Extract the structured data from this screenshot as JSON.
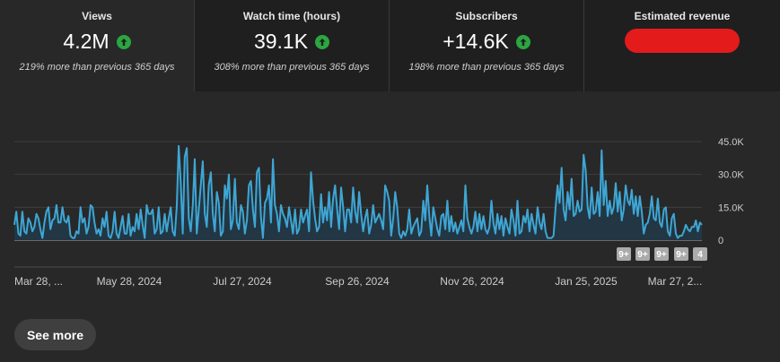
{
  "metrics": [
    {
      "label": "Views",
      "value": "4.2M",
      "compare": "219% more than previous 365 days",
      "trend_icon": "arrow-up-icon"
    },
    {
      "label": "Watch time (hours)",
      "value": "39.1K",
      "compare": "308% more than previous 365 days",
      "trend_icon": "arrow-up-icon"
    },
    {
      "label": "Subscribers",
      "value": "+14.6K",
      "compare": "198% more than previous 365 days",
      "trend_icon": "arrow-up-icon"
    },
    {
      "label": "Estimated revenue",
      "value_redacted": true
    }
  ],
  "colors": {
    "line": "#3ea6d4",
    "fill": "#223644",
    "trend_up": "#2ba640",
    "redaction": "#e31b1b"
  },
  "chart_data": {
    "type": "area",
    "ylim": [
      0,
      45000
    ],
    "y_ticks": [
      {
        "value": 45000,
        "label": "45.0K"
      },
      {
        "value": 30000,
        "label": "30.0K"
      },
      {
        "value": 15000,
        "label": "15.0K"
      },
      {
        "value": 0,
        "label": "0"
      }
    ],
    "x_tick_labels": [
      "Mar 28, ...",
      "May 28, 2024",
      "Jul 27, 2024",
      "Sep 26, 2024",
      "Nov 26, 2024",
      "Jan 25, 2025",
      "Mar 27, 2..."
    ],
    "badges": [
      "9+",
      "9+",
      "9+",
      "9+",
      "4"
    ],
    "values": [
      7000,
      13000,
      3000,
      2000,
      13000,
      4000,
      3000,
      10000,
      8000,
      4000,
      6000,
      12000,
      10000,
      5000,
      1000,
      8000,
      13000,
      15000,
      5000,
      9000,
      10000,
      16000,
      8000,
      8000,
      15000,
      9000,
      8000,
      11000,
      2000,
      1000,
      1000,
      4000,
      3000,
      15000,
      8000,
      10000,
      3000,
      6000,
      16000,
      15000,
      8000,
      3000,
      5000,
      2000,
      10000,
      6000,
      13000,
      2000,
      1000,
      4000,
      13000,
      3000,
      1000,
      6000,
      11000,
      3000,
      3000,
      12000,
      2000,
      6000,
      4000,
      12000,
      5000,
      14000,
      7000,
      1000,
      16000,
      12000,
      12000,
      14000,
      3000,
      5000,
      15000,
      3000,
      4000,
      12000,
      4000,
      10000,
      15000,
      4000,
      2000,
      15000,
      43000,
      26000,
      3000,
      38000,
      42000,
      10000,
      4000,
      16000,
      37000,
      3000,
      14000,
      25000,
      36000,
      12000,
      6000,
      25000,
      31000,
      12000,
      4000,
      22000,
      17000,
      2000,
      4000,
      25000,
      19000,
      30000,
      5000,
      9000,
      28000,
      8000,
      5000,
      16000,
      13000,
      3000,
      9000,
      25000,
      27000,
      14000,
      6000,
      31000,
      33000,
      11000,
      1000,
      17000,
      19000,
      25000,
      8000,
      37000,
      16000,
      12000,
      4000,
      16000,
      12000,
      10000,
      6000,
      15000,
      9000,
      3000,
      14000,
      3000,
      5000,
      14000,
      8000,
      11000,
      14000,
      4000,
      31000,
      18000,
      10000,
      4000,
      6000,
      21000,
      8000,
      15000,
      9000,
      22000,
      6000,
      19000,
      25000,
      14000,
      5000,
      24000,
      15000,
      4000,
      14000,
      14000,
      8000,
      24000,
      13000,
      8000,
      22000,
      12000,
      4000,
      10000,
      14000,
      3000,
      7000,
      16000,
      8000,
      10000,
      12000,
      9000,
      5000,
      25000,
      22000,
      18000,
      2000,
      10000,
      22000,
      15000,
      3000,
      1000,
      4000,
      2000,
      5000,
      14000,
      3000,
      6000,
      8000,
      10000,
      2000,
      4000,
      18000,
      9000,
      25000,
      11000,
      2000,
      15000,
      10000,
      5000,
      2000,
      11000,
      12000,
      5000,
      18000,
      4000,
      11000,
      4000,
      8000,
      3000,
      6000,
      9000,
      4000,
      25000,
      10000,
      6000,
      3000,
      6000,
      13000,
      4000,
      12000,
      5000,
      11000,
      5000,
      3000,
      6000,
      18000,
      8000,
      3000,
      12000,
      5000,
      11000,
      2000,
      10000,
      6000,
      3000,
      14000,
      9000,
      2000,
      18000,
      3000,
      4000,
      11000,
      8000,
      14000,
      4000,
      12000,
      7000,
      3000,
      15000,
      8000,
      5000,
      12000,
      4000,
      1000,
      1000,
      1000,
      2000,
      15000,
      25000,
      17000,
      33000,
      14000,
      9000,
      22000,
      14000,
      28000,
      11000,
      12000,
      18000,
      13000,
      14000,
      39000,
      32000,
      15000,
      10000,
      24000,
      12000,
      13000,
      22000,
      11000,
      41000,
      16000,
      27000,
      11000,
      18000,
      12000,
      15000,
      26000,
      13000,
      22000,
      9000,
      14000,
      25000,
      18000,
      16000,
      23000,
      12000,
      20000,
      11000,
      20000,
      13000,
      3000,
      7000,
      8000,
      12000,
      20000,
      10000,
      9000,
      19000,
      8000,
      6000,
      14000,
      15000,
      4000,
      2000,
      10000,
      12000,
      3000,
      1000,
      2000,
      2000,
      4000,
      7000,
      5000,
      4000,
      6000,
      6000,
      9000,
      4000,
      8000,
      7000
    ]
  },
  "see_more_label": "See more"
}
